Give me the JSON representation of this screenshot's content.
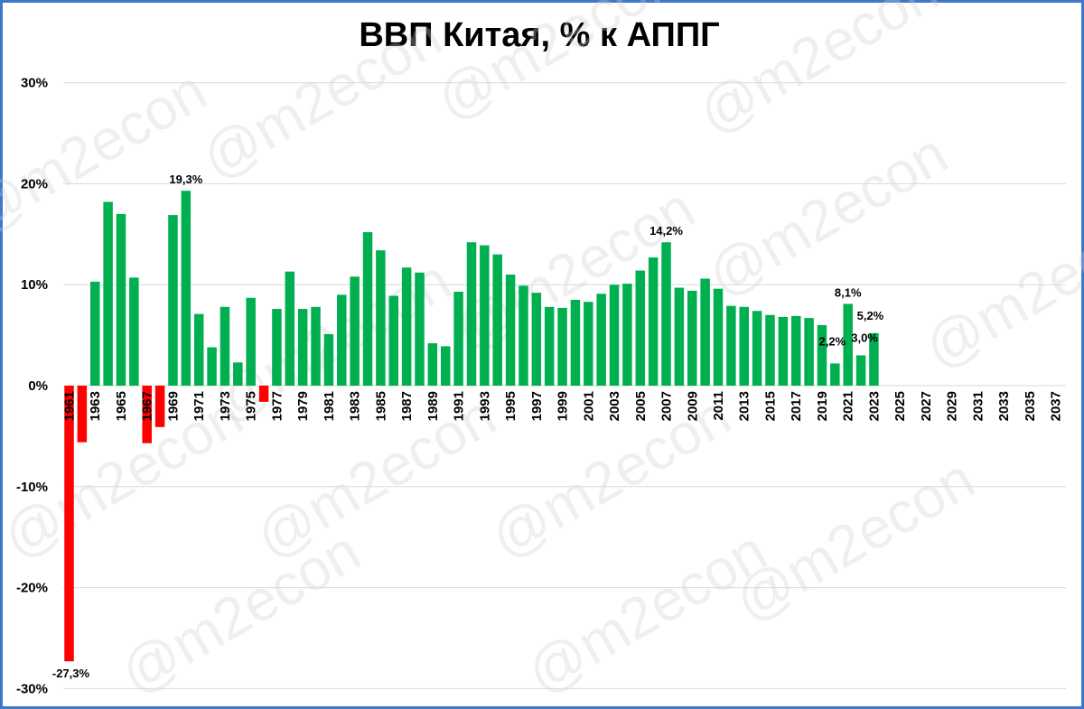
{
  "chart_data": {
    "type": "bar",
    "title": "ВВП Китая, % к АППГ",
    "xlabel": "",
    "ylabel": "",
    "ylim": [
      -30,
      30
    ],
    "yticks": [
      30,
      20,
      10,
      0,
      -10,
      -20,
      -30
    ],
    "ytick_labels": [
      "30%",
      "20%",
      "10%",
      "0%",
      "-10%",
      "-20%",
      "-30%"
    ],
    "grid": true,
    "legend": "none",
    "colors": {
      "positive": "#00b050",
      "negative": "#ff0000",
      "grid": "#d9d9d9",
      "frame": "#3f78c9"
    },
    "watermark": "@m2econ",
    "categories": [
      "1961",
      "1962",
      "1963",
      "1964",
      "1965",
      "1966",
      "1967",
      "1968",
      "1969",
      "1970",
      "1971",
      "1972",
      "1973",
      "1974",
      "1975",
      "1976",
      "1977",
      "1978",
      "1979",
      "1980",
      "1981",
      "1982",
      "1983",
      "1984",
      "1985",
      "1986",
      "1987",
      "1988",
      "1989",
      "1990",
      "1991",
      "1992",
      "1993",
      "1994",
      "1995",
      "1996",
      "1997",
      "1998",
      "1999",
      "2000",
      "2001",
      "2002",
      "2003",
      "2004",
      "2005",
      "2006",
      "2007",
      "2008",
      "2009",
      "2010",
      "2011",
      "2012",
      "2013",
      "2014",
      "2015",
      "2016",
      "2017",
      "2018",
      "2019",
      "2020",
      "2021",
      "2022",
      "2023",
      "2024",
      "2025",
      "2026",
      "2027",
      "2028",
      "2029",
      "2030",
      "2031",
      "2032",
      "2033",
      "2034",
      "2035",
      "2036",
      "2037",
      "2038"
    ],
    "tick_labels_shown": [
      "1961",
      "1963",
      "1965",
      "1967",
      "1969",
      "1971",
      "1973",
      "1975",
      "1977",
      "1979",
      "1981",
      "1983",
      "1985",
      "1987",
      "1989",
      "1991",
      "1993",
      "1995",
      "1997",
      "1999",
      "2001",
      "2003",
      "2005",
      "2007",
      "2009",
      "2011",
      "2013",
      "2015",
      "2017",
      "2019",
      "2021",
      "2023",
      "2025",
      "2027",
      "2029",
      "2031",
      "2033",
      "2035",
      "2037"
    ],
    "values": [
      -27.3,
      -5.6,
      10.3,
      18.2,
      17.0,
      10.7,
      -5.7,
      -4.1,
      16.9,
      19.3,
      7.1,
      3.8,
      7.8,
      2.3,
      8.7,
      -1.6,
      7.6,
      11.3,
      7.6,
      7.8,
      5.1,
      9.0,
      10.8,
      15.2,
      13.4,
      8.9,
      11.7,
      11.2,
      4.2,
      3.9,
      9.3,
      14.2,
      13.9,
      13.0,
      11.0,
      9.9,
      9.2,
      7.8,
      7.7,
      8.5,
      8.3,
      9.1,
      10.0,
      10.1,
      11.4,
      12.7,
      14.2,
      9.7,
      9.4,
      10.6,
      9.6,
      7.9,
      7.8,
      7.4,
      7.0,
      6.8,
      6.9,
      6.7,
      6.0,
      2.2,
      8.1,
      3.0,
      5.2,
      null,
      null,
      null,
      null,
      null,
      null,
      null,
      null,
      null,
      null,
      null,
      null,
      null,
      null,
      null
    ],
    "data_labels": [
      {
        "year": "1961",
        "text": "-27,3%"
      },
      {
        "year": "1970",
        "text": "19,3%"
      },
      {
        "year": "2007",
        "text": "14,2%"
      },
      {
        "year": "2020",
        "text": "2,2%"
      },
      {
        "year": "2021",
        "text": "8,1%"
      },
      {
        "year": "2022",
        "text": "3,0%"
      },
      {
        "year": "2023",
        "text": "5,2%"
      }
    ]
  }
}
